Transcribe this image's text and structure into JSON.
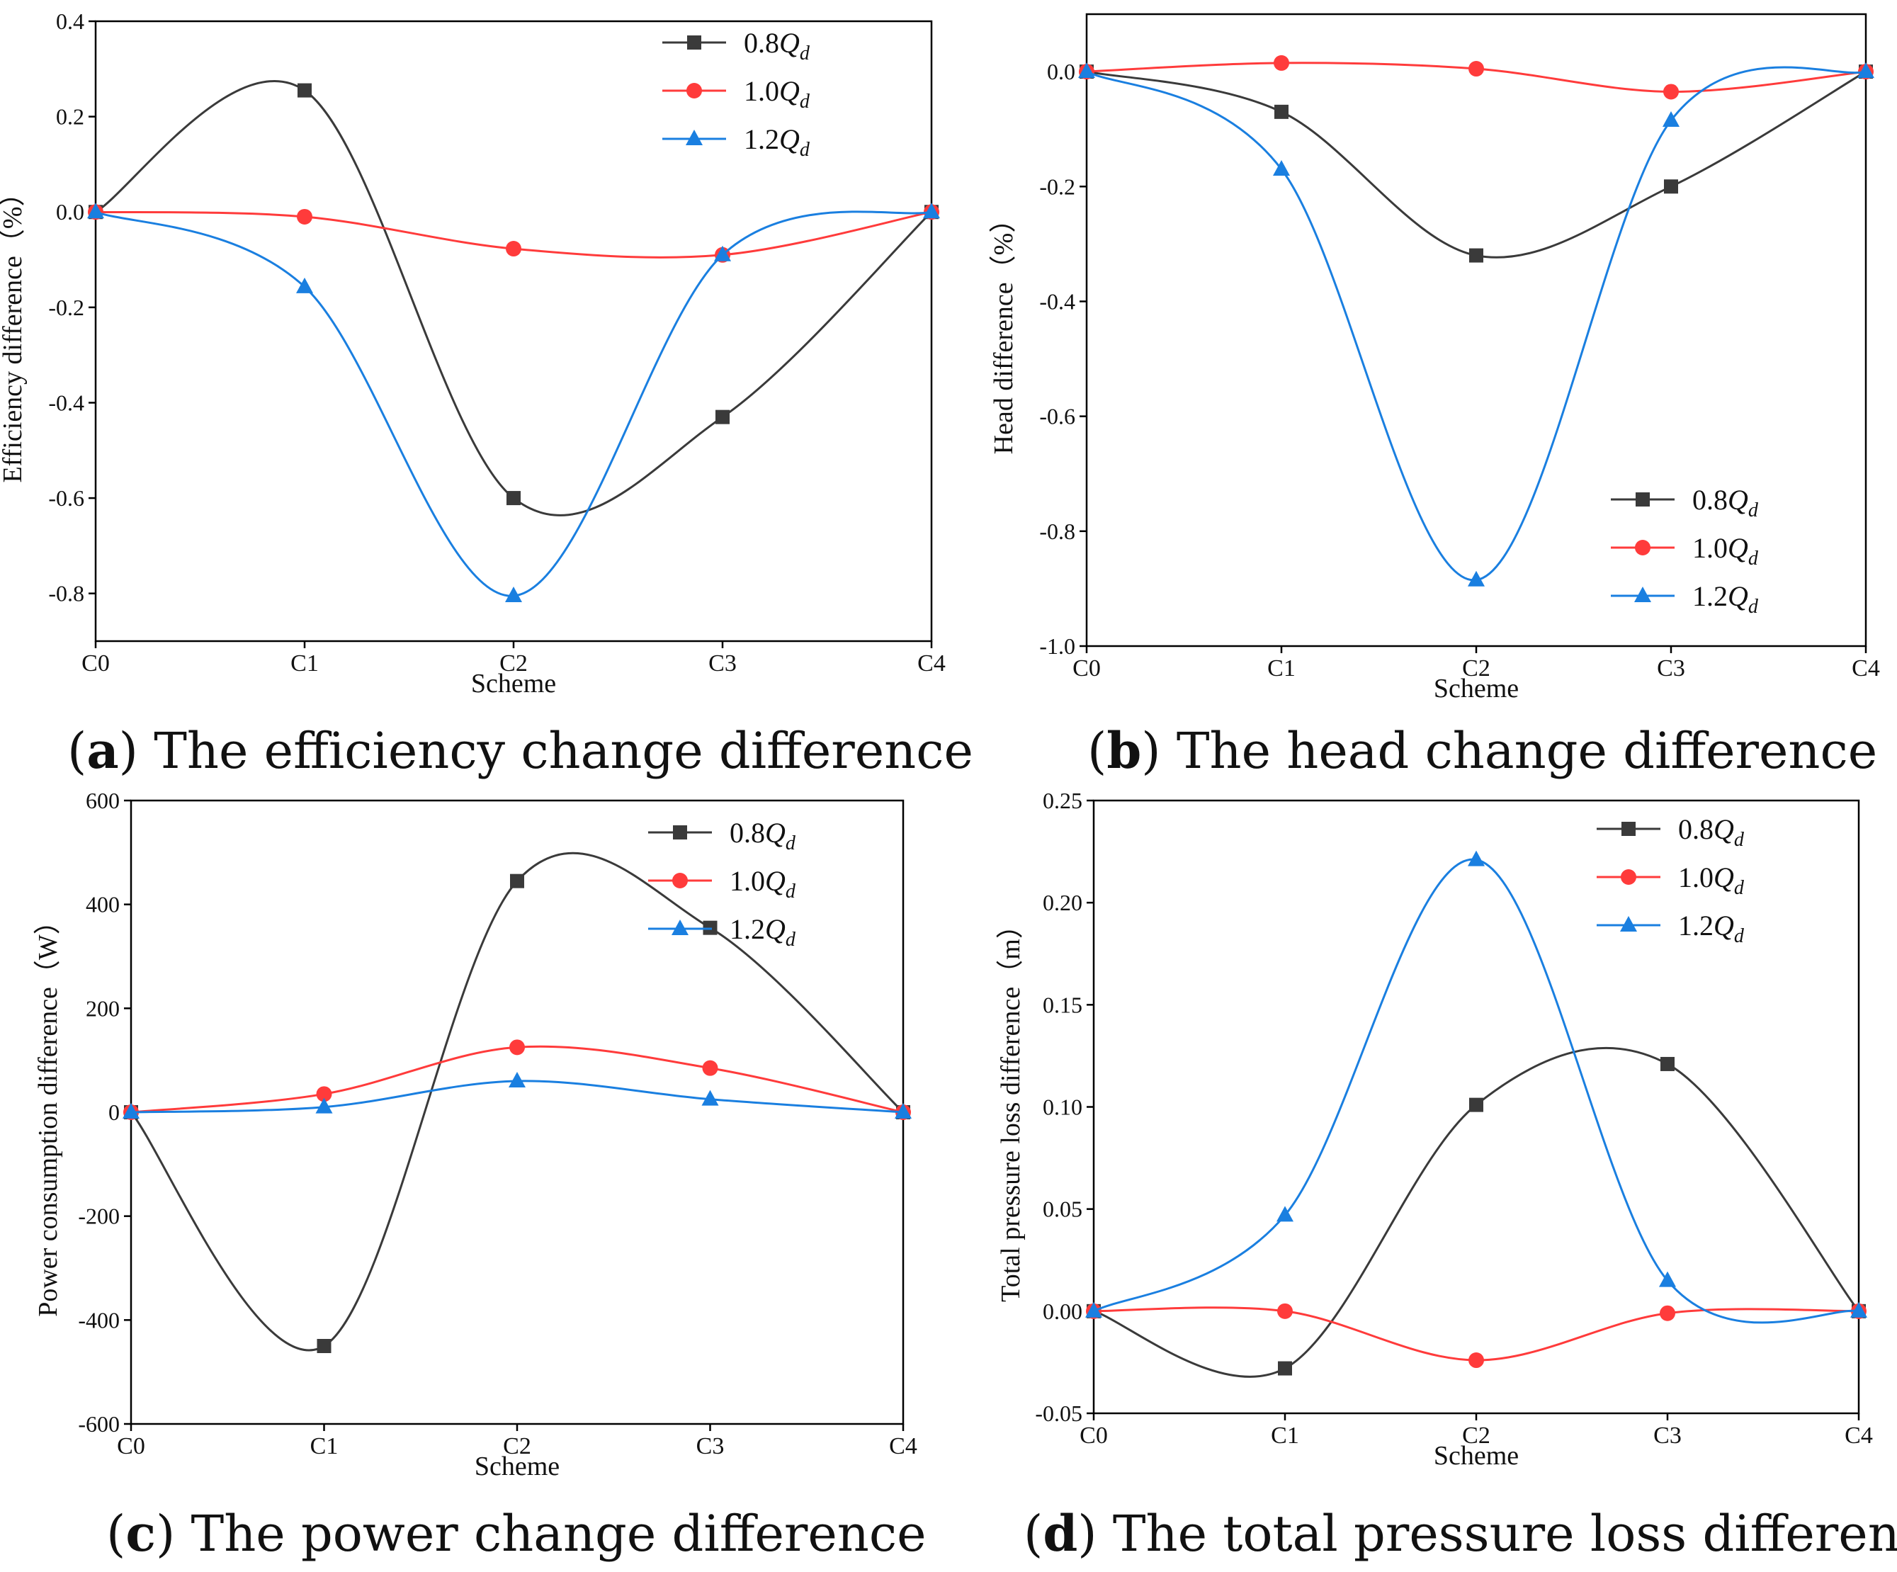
{
  "colors": {
    "s08": "#3a3a3a",
    "s10": "#ff3b3b",
    "s12": "#1a7fe0",
    "axis": "#000000"
  },
  "legend_labels": [
    {
      "prefix": "0.8",
      "q": "Q",
      "sub": "d"
    },
    {
      "prefix": "1.0",
      "q": "Q",
      "sub": "d"
    },
    {
      "prefix": "1.2",
      "q": "Q",
      "sub": "d"
    }
  ],
  "chart_data": [
    {
      "id": "a",
      "type": "line",
      "caption": {
        "letter": "a",
        "text": "The efficiency change difference"
      },
      "categories": [
        "C0",
        "C1",
        "C2",
        "C3",
        "C4"
      ],
      "xlabel": "Scheme",
      "ylabel": "Efficiency difference（%）",
      "ylim": [
        -0.9,
        0.4
      ],
      "yticks": [
        "0.4",
        "0.2",
        "0.0",
        "-0.2",
        "-0.4",
        "-0.6",
        "-0.8"
      ],
      "ytick_values": [
        0.4,
        0.2,
        0.0,
        -0.2,
        -0.4,
        -0.6,
        -0.8
      ],
      "legend_position": "top-right",
      "series": [
        {
          "name": "0.8Qd",
          "marker": "square",
          "values": [
            0.0,
            0.255,
            -0.6,
            -0.43,
            0.0
          ]
        },
        {
          "name": "1.0Qd",
          "marker": "circle",
          "values": [
            0.0,
            -0.01,
            -0.077,
            -0.09,
            0.0
          ]
        },
        {
          "name": "1.2Qd",
          "marker": "triangle",
          "values": [
            0.0,
            -0.157,
            -0.805,
            -0.09,
            0.0
          ]
        }
      ]
    },
    {
      "id": "b",
      "type": "line",
      "caption": {
        "letter": "b",
        "text": "The head change difference"
      },
      "categories": [
        "C0",
        "C1",
        "C2",
        "C3",
        "C4"
      ],
      "xlabel": "Scheme",
      "ylabel": "Head difference（%）",
      "ylim": [
        -1.0,
        0.1
      ],
      "yticks": [
        "0.0",
        "-0.2",
        "-0.4",
        "-0.6",
        "-0.8",
        "-1.0"
      ],
      "ytick_values": [
        0.0,
        -0.2,
        -0.4,
        -0.6,
        -0.8,
        -1.0
      ],
      "legend_position": "bottom-right",
      "series": [
        {
          "name": "0.8Qd",
          "marker": "square",
          "values": [
            0.0,
            -0.07,
            -0.32,
            -0.2,
            0.0
          ]
        },
        {
          "name": "1.0Qd",
          "marker": "circle",
          "values": [
            0.0,
            0.015,
            0.005,
            -0.035,
            0.0
          ]
        },
        {
          "name": "1.2Qd",
          "marker": "triangle",
          "values": [
            0.0,
            -0.17,
            -0.885,
            -0.085,
            0.0
          ]
        }
      ]
    },
    {
      "id": "c",
      "type": "line",
      "caption": {
        "letter": "c",
        "text": "The power change difference"
      },
      "categories": [
        "C0",
        "C1",
        "C2",
        "C3",
        "C4"
      ],
      "xlabel": "Scheme",
      "ylabel": "Power consumption difference（W）",
      "ylim": [
        -600,
        600
      ],
      "yticks": [
        "600",
        "400",
        "200",
        "0",
        "-200",
        "-400",
        "-600"
      ],
      "ytick_values": [
        600,
        400,
        200,
        0,
        -200,
        -400,
        -600
      ],
      "legend_position": "top-right",
      "series": [
        {
          "name": "0.8Qd",
          "marker": "square",
          "values": [
            0,
            -450,
            445,
            355,
            0
          ]
        },
        {
          "name": "1.0Qd",
          "marker": "circle",
          "values": [
            0,
            35,
            125,
            85,
            0
          ]
        },
        {
          "name": "1.2Qd",
          "marker": "triangle",
          "values": [
            0,
            10,
            60,
            25,
            0
          ]
        }
      ]
    },
    {
      "id": "d",
      "type": "line",
      "caption": {
        "letter": "d",
        "text": "The total pressure loss difference"
      },
      "categories": [
        "C0",
        "C1",
        "C2",
        "C3",
        "C4"
      ],
      "xlabel": "Scheme",
      "ylabel": "Total pressure loss difference（m）",
      "ylim": [
        -0.05,
        0.25
      ],
      "yticks": [
        "0.25",
        "0.20",
        "0.15",
        "0.10",
        "0.05",
        "0.00",
        "-0.05"
      ],
      "ytick_values": [
        0.25,
        0.2,
        0.15,
        0.1,
        0.05,
        0.0,
        -0.05
      ],
      "legend_position": "top-right",
      "series": [
        {
          "name": "0.8Qd",
          "marker": "square",
          "values": [
            0.0,
            -0.028,
            0.101,
            0.121,
            0.0
          ]
        },
        {
          "name": "1.0Qd",
          "marker": "circle",
          "values": [
            0.0,
            0.0,
            -0.024,
            -0.001,
            0.0
          ]
        },
        {
          "name": "1.2Qd",
          "marker": "triangle",
          "values": [
            0.0,
            0.047,
            0.221,
            0.015,
            0.0
          ]
        }
      ]
    }
  ]
}
